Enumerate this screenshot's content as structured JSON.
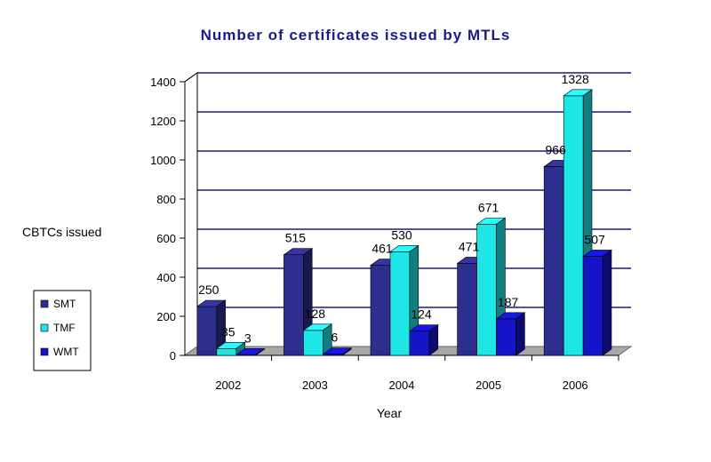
{
  "chart_data": {
    "type": "bar",
    "title": "Number of certificates issued by MTLs",
    "xlabel": "Year",
    "ylabel": "CBTCs issued",
    "categories": [
      "2002",
      "2003",
      "2004",
      "2005",
      "2006"
    ],
    "series": [
      {
        "name": "SMT",
        "values": [
          250,
          515,
          461,
          471,
          966
        ],
        "color": "#2e2e8f",
        "labels": [
          "250",
          "515",
          "461",
          "471",
          "966"
        ]
      },
      {
        "name": "TMF",
        "values": [
          35,
          128,
          530,
          671,
          1328
        ],
        "color": "#1ee6e6",
        "labels": [
          "35",
          "128",
          "530",
          "671",
          "1328"
        ]
      },
      {
        "name": "WMT",
        "values": [
          3,
          6,
          124,
          187,
          507
        ],
        "color": "#1515c8",
        "labels": [
          "3",
          "6",
          "124",
          "187",
          "507"
        ]
      }
    ],
    "ylim": [
      0,
      1400
    ],
    "yticks": [
      0,
      200,
      400,
      600,
      800,
      1000,
      1200,
      1400
    ],
    "grid": true,
    "legend_position": "left"
  }
}
